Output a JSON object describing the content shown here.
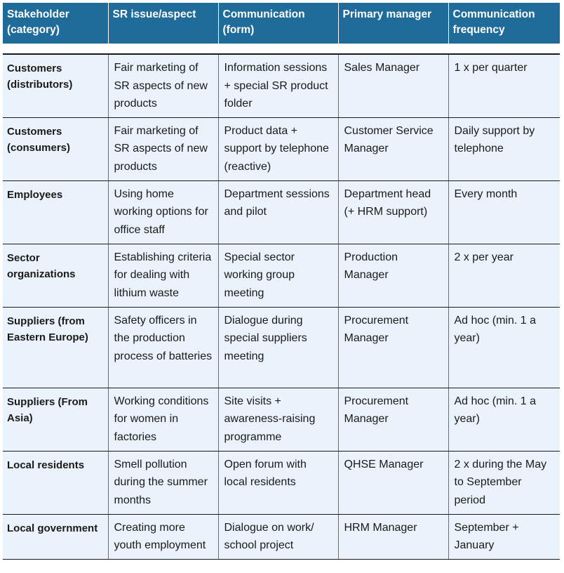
{
  "table": {
    "headers": [
      "Stakeholder (category)",
      "SR issue/aspect",
      "Communication (form)",
      "Primary manager",
      "Communication frequency"
    ],
    "rows": [
      {
        "stakeholder": "Customers (distributors)",
        "issue": "Fair marketing of SR aspects of new products",
        "form": "Information sessions + special SR product folder",
        "manager": "Sales Manager",
        "frequency": "1 x per quarter"
      },
      {
        "stakeholder": "Customers (consumers)",
        "issue": "Fair marketing of SR aspects of new products",
        "form": "Product data + support by telephone (reactive)",
        "manager": "Customer Service Manager",
        "frequency": "Daily support by telephone"
      },
      {
        "stakeholder": "Employees",
        "issue": "Using home working options for office staff",
        "form": "Department sessions and pilot",
        "manager": "Department head (+ HRM support)",
        "frequency": "Every month"
      },
      {
        "stakeholder": "Sector organizations",
        "issue": "Establishing criteria for dealing with lithium waste",
        "form": "Special sector working group meeting",
        "manager": "Production Manager",
        "frequency": "2 x per year"
      },
      {
        "stakeholder": "Suppliers (from Eastern Europe)",
        "issue": "Safety officers in the production process of batteries",
        "form": "Dialogue during special suppliers meeting",
        "manager": "Procurement Manager",
        "frequency": "Ad hoc (min. 1 a year)"
      },
      {
        "stakeholder": "Suppliers (From Asia)",
        "issue": "Working conditions for women in factories",
        "form": "Site visits + awareness-raising programme",
        "manager": "Procurement Manager",
        "frequency": "Ad hoc (min. 1 a year)"
      },
      {
        "stakeholder": "Local residents",
        "issue": "Smell pollution during the summer months",
        "form": "Open forum with local residents",
        "manager": "QHSE Manager",
        "frequency": "2 x during the May to September period"
      },
      {
        "stakeholder": "Local government",
        "issue": "Creating more youth employment",
        "form": "Dialogue on work/ school project",
        "manager": "HRM Manager",
        "frequency": "September + January"
      }
    ]
  }
}
